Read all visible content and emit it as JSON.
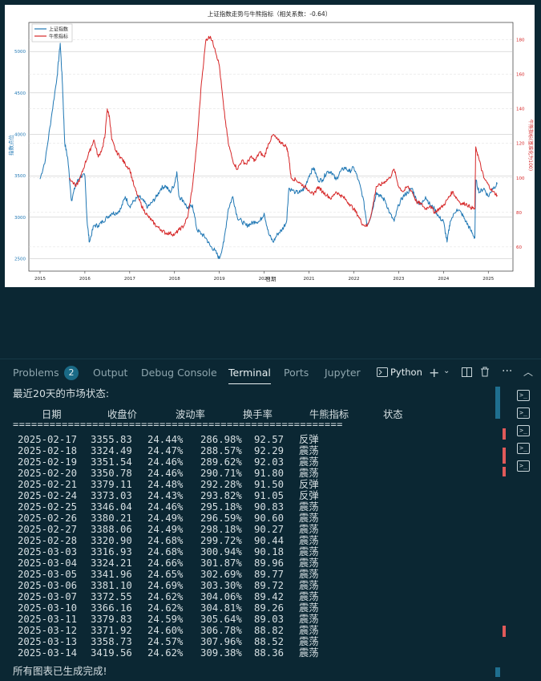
{
  "chart_data": {
    "type": "line",
    "title": "上证指数走势与牛熊指标（相关系数：-0.64）",
    "xlabel": "日期",
    "ylabel_left": "指数点位",
    "ylabel_right": "牛熊指标(基准化为100)",
    "x_ticks": [
      "2015",
      "2016",
      "2017",
      "2018",
      "2019",
      "2020",
      "2021",
      "2022",
      "2023",
      "2024",
      "2025"
    ],
    "y_left_ticks": [
      2500,
      3000,
      3500,
      4000,
      4500,
      5000
    ],
    "y_right_ticks": [
      60,
      80,
      100,
      120,
      140,
      160,
      180
    ],
    "ylim_left": [
      2350,
      5350
    ],
    "ylim_right": [
      46,
      190
    ],
    "legend_position": "top-left",
    "series": [
      {
        "name": "上证指数",
        "color": "#1f77b4",
        "axis": "left",
        "points": [
          [
            2015.0,
            3460
          ],
          [
            2015.12,
            3700
          ],
          [
            2015.25,
            4200
          ],
          [
            2015.38,
            4700
          ],
          [
            2015.45,
            5100
          ],
          [
            2015.5,
            4600
          ],
          [
            2015.55,
            3900
          ],
          [
            2015.62,
            3700
          ],
          [
            2015.7,
            3200
          ],
          [
            2015.8,
            3400
          ],
          [
            2015.9,
            3500
          ],
          [
            2016.0,
            3500
          ],
          [
            2016.05,
            2950
          ],
          [
            2016.1,
            2700
          ],
          [
            2016.2,
            2900
          ],
          [
            2016.3,
            2900
          ],
          [
            2016.4,
            2950
          ],
          [
            2016.5,
            3000
          ],
          [
            2016.6,
            3050
          ],
          [
            2016.7,
            3050
          ],
          [
            2016.8,
            3100
          ],
          [
            2016.9,
            3250
          ],
          [
            2017.0,
            3130
          ],
          [
            2017.1,
            3200
          ],
          [
            2017.2,
            3250
          ],
          [
            2017.3,
            3200
          ],
          [
            2017.4,
            3120
          ],
          [
            2017.5,
            3180
          ],
          [
            2017.6,
            3250
          ],
          [
            2017.7,
            3350
          ],
          [
            2017.8,
            3380
          ],
          [
            2017.9,
            3300
          ],
          [
            2018.0,
            3400
          ],
          [
            2018.05,
            3550
          ],
          [
            2018.1,
            3250
          ],
          [
            2018.2,
            3200
          ],
          [
            2018.3,
            3100
          ],
          [
            2018.4,
            3150
          ],
          [
            2018.5,
            2850
          ],
          [
            2018.6,
            2800
          ],
          [
            2018.7,
            2750
          ],
          [
            2018.8,
            2650
          ],
          [
            2018.9,
            2600
          ],
          [
            2019.0,
            2500
          ],
          [
            2019.1,
            2700
          ],
          [
            2019.2,
            3100
          ],
          [
            2019.3,
            3250
          ],
          [
            2019.4,
            3000
          ],
          [
            2019.5,
            2950
          ],
          [
            2019.6,
            2900
          ],
          [
            2019.7,
            2920
          ],
          [
            2019.8,
            2950
          ],
          [
            2019.9,
            2950
          ],
          [
            2020.0,
            3050
          ],
          [
            2020.1,
            2800
          ],
          [
            2020.2,
            2700
          ],
          [
            2020.3,
            2800
          ],
          [
            2020.4,
            2850
          ],
          [
            2020.5,
            2950
          ],
          [
            2020.55,
            3350
          ],
          [
            2020.7,
            3300
          ],
          [
            2020.8,
            3300
          ],
          [
            2020.9,
            3350
          ],
          [
            2021.0,
            3500
          ],
          [
            2021.1,
            3600
          ],
          [
            2021.2,
            3450
          ],
          [
            2021.3,
            3450
          ],
          [
            2021.4,
            3550
          ],
          [
            2021.5,
            3550
          ],
          [
            2021.6,
            3450
          ],
          [
            2021.7,
            3550
          ],
          [
            2021.8,
            3600
          ],
          [
            2021.9,
            3550
          ],
          [
            2022.0,
            3600
          ],
          [
            2022.1,
            3450
          ],
          [
            2022.2,
            3250
          ],
          [
            2022.3,
            2900
          ],
          [
            2022.4,
            3050
          ],
          [
            2022.5,
            3300
          ],
          [
            2022.6,
            3250
          ],
          [
            2022.7,
            3200
          ],
          [
            2022.8,
            3050
          ],
          [
            2022.9,
            2950
          ],
          [
            2023.0,
            3150
          ],
          [
            2023.1,
            3250
          ],
          [
            2023.2,
            3300
          ],
          [
            2023.3,
            3350
          ],
          [
            2023.4,
            3200
          ],
          [
            2023.5,
            3150
          ],
          [
            2023.6,
            3250
          ],
          [
            2023.7,
            3150
          ],
          [
            2023.8,
            3100
          ],
          [
            2023.9,
            3000
          ],
          [
            2024.0,
            2950
          ],
          [
            2024.08,
            2700
          ],
          [
            2024.15,
            2950
          ],
          [
            2024.3,
            3100
          ],
          [
            2024.4,
            3050
          ],
          [
            2024.5,
            2950
          ],
          [
            2024.6,
            2850
          ],
          [
            2024.7,
            2750
          ],
          [
            2024.72,
            3450
          ],
          [
            2024.8,
            3300
          ],
          [
            2024.9,
            3350
          ],
          [
            2025.0,
            3250
          ],
          [
            2025.1,
            3350
          ],
          [
            2025.2,
            3400
          ]
        ]
      },
      {
        "name": "牛熊指标",
        "color": "#d62728",
        "axis": "right",
        "points": [
          [
            2015.65,
            100
          ],
          [
            2015.8,
            95
          ],
          [
            2015.9,
            100
          ],
          [
            2016.0,
            108
          ],
          [
            2016.1,
            115
          ],
          [
            2016.2,
            122
          ],
          [
            2016.3,
            112
          ],
          [
            2016.4,
            118
          ],
          [
            2016.45,
            125
          ],
          [
            2016.5,
            140
          ],
          [
            2016.55,
            135
          ],
          [
            2016.6,
            122
          ],
          [
            2016.7,
            115
          ],
          [
            2016.8,
            112
          ],
          [
            2016.9,
            108
          ],
          [
            2017.0,
            105
          ],
          [
            2017.1,
            95
          ],
          [
            2017.2,
            88
          ],
          [
            2017.3,
            82
          ],
          [
            2017.4,
            78
          ],
          [
            2017.5,
            75
          ],
          [
            2017.6,
            72
          ],
          [
            2017.7,
            70
          ],
          [
            2017.8,
            68
          ],
          [
            2017.9,
            68
          ],
          [
            2018.0,
            67
          ],
          [
            2018.1,
            70
          ],
          [
            2018.2,
            72
          ],
          [
            2018.3,
            78
          ],
          [
            2018.4,
            95
          ],
          [
            2018.5,
            120
          ],
          [
            2018.6,
            155
          ],
          [
            2018.7,
            180
          ],
          [
            2018.8,
            182
          ],
          [
            2018.9,
            175
          ],
          [
            2019.0,
            165
          ],
          [
            2019.1,
            140
          ],
          [
            2019.2,
            120
          ],
          [
            2019.3,
            110
          ],
          [
            2019.4,
            105
          ],
          [
            2019.5,
            110
          ],
          [
            2019.6,
            108
          ],
          [
            2019.7,
            112
          ],
          [
            2019.8,
            110
          ],
          [
            2019.9,
            115
          ],
          [
            2020.0,
            112
          ],
          [
            2020.1,
            120
          ],
          [
            2020.2,
            125
          ],
          [
            2020.3,
            122
          ],
          [
            2020.4,
            120
          ],
          [
            2020.5,
            118
          ],
          [
            2020.55,
            112
          ],
          [
            2020.6,
            100
          ],
          [
            2020.7,
            99
          ],
          [
            2020.8,
            97
          ],
          [
            2020.9,
            95
          ],
          [
            2021.0,
            93
          ],
          [
            2021.1,
            90
          ],
          [
            2021.2,
            95
          ],
          [
            2021.3,
            92
          ],
          [
            2021.4,
            90
          ],
          [
            2021.5,
            88
          ],
          [
            2021.6,
            92
          ],
          [
            2021.7,
            90
          ],
          [
            2021.8,
            88
          ],
          [
            2021.9,
            85
          ],
          [
            2022.0,
            82
          ],
          [
            2022.1,
            78
          ],
          [
            2022.2,
            73
          ],
          [
            2022.3,
            72
          ],
          [
            2022.4,
            80
          ],
          [
            2022.5,
            95
          ],
          [
            2022.6,
            96
          ],
          [
            2022.7,
            98
          ],
          [
            2022.8,
            100
          ],
          [
            2022.9,
            105
          ],
          [
            2023.0,
            95
          ],
          [
            2023.1,
            92
          ],
          [
            2023.2,
            95
          ],
          [
            2023.3,
            92
          ],
          [
            2023.4,
            86
          ],
          [
            2023.5,
            85
          ],
          [
            2023.6,
            82
          ],
          [
            2023.7,
            84
          ],
          [
            2023.8,
            80
          ],
          [
            2023.9,
            82
          ],
          [
            2024.0,
            84
          ],
          [
            2024.1,
            88
          ],
          [
            2024.2,
            92
          ],
          [
            2024.3,
            88
          ],
          [
            2024.4,
            85
          ],
          [
            2024.5,
            85
          ],
          [
            2024.6,
            83
          ],
          [
            2024.7,
            82
          ],
          [
            2024.72,
            118
          ],
          [
            2024.8,
            110
          ],
          [
            2024.9,
            100
          ],
          [
            2025.0,
            96
          ],
          [
            2025.1,
            92
          ],
          [
            2025.2,
            90
          ]
        ]
      }
    ]
  },
  "panel": {
    "tabs": [
      "Problems",
      "Output",
      "Debug Console",
      "Terminal",
      "Ports",
      "Jupyter"
    ],
    "problems_count": "2",
    "active_tab": "Terminal",
    "terminal_profile": "Python",
    "add_icon": "plus-icon",
    "split_icon": "split-terminal-icon",
    "trash_icon": "trash-icon",
    "more_icon": "ellipsis-icon",
    "collapse_icon": "chevron-up-icon"
  },
  "terminal": {
    "heading": "最近20天的市场状态:",
    "headers": [
      "日期",
      "收盘价",
      "波动率",
      "换手率",
      "牛熊指标",
      "状态"
    ],
    "separator": "======================================================",
    "rows": [
      [
        "2025-02-17",
        "3355.83",
        "24.44%",
        "286.98%",
        "92.57",
        "反弹"
      ],
      [
        "2025-02-18",
        "3324.49",
        "24.47%",
        "288.57%",
        "92.29",
        "震荡"
      ],
      [
        "2025-02-19",
        "3351.54",
        "24.46%",
        "289.62%",
        "92.03",
        "震荡"
      ],
      [
        "2025-02-20",
        "3350.78",
        "24.46%",
        "290.71%",
        "91.80",
        "震荡"
      ],
      [
        "2025-02-21",
        "3379.11",
        "24.48%",
        "292.28%",
        "91.50",
        "反弹"
      ],
      [
        "2025-02-24",
        "3373.03",
        "24.43%",
        "293.82%",
        "91.05",
        "反弹"
      ],
      [
        "2025-02-25",
        "3346.04",
        "24.46%",
        "295.18%",
        "90.83",
        "震荡"
      ],
      [
        "2025-02-26",
        "3380.21",
        "24.49%",
        "296.59%",
        "90.60",
        "震荡"
      ],
      [
        "2025-02-27",
        "3388.06",
        "24.49%",
        "298.18%",
        "90.27",
        "震荡"
      ],
      [
        "2025-02-28",
        "3320.90",
        "24.68%",
        "299.72%",
        "90.44",
        "震荡"
      ],
      [
        "2025-03-03",
        "3316.93",
        "24.68%",
        "300.94%",
        "90.18",
        "震荡"
      ],
      [
        "2025-03-04",
        "3324.21",
        "24.66%",
        "301.87%",
        "89.96",
        "震荡"
      ],
      [
        "2025-03-05",
        "3341.96",
        "24.65%",
        "302.69%",
        "89.77",
        "震荡"
      ],
      [
        "2025-03-06",
        "3381.10",
        "24.69%",
        "303.30%",
        "89.72",
        "震荡"
      ],
      [
        "2025-03-07",
        "3372.55",
        "24.62%",
        "304.06%",
        "89.42",
        "震荡"
      ],
      [
        "2025-03-10",
        "3366.16",
        "24.62%",
        "304.81%",
        "89.26",
        "震荡"
      ],
      [
        "2025-03-11",
        "3379.83",
        "24.59%",
        "305.64%",
        "89.03",
        "震荡"
      ],
      [
        "2025-03-12",
        "3371.92",
        "24.60%",
        "306.78%",
        "88.82",
        "震荡"
      ],
      [
        "2025-03-13",
        "3358.73",
        "24.57%",
        "307.96%",
        "88.52",
        "震荡"
      ],
      [
        "2025-03-14",
        "3419.56",
        "24.62%",
        "309.38%",
        "88.36",
        "震荡"
      ]
    ],
    "footer": "所有图表已生成完成!"
  }
}
